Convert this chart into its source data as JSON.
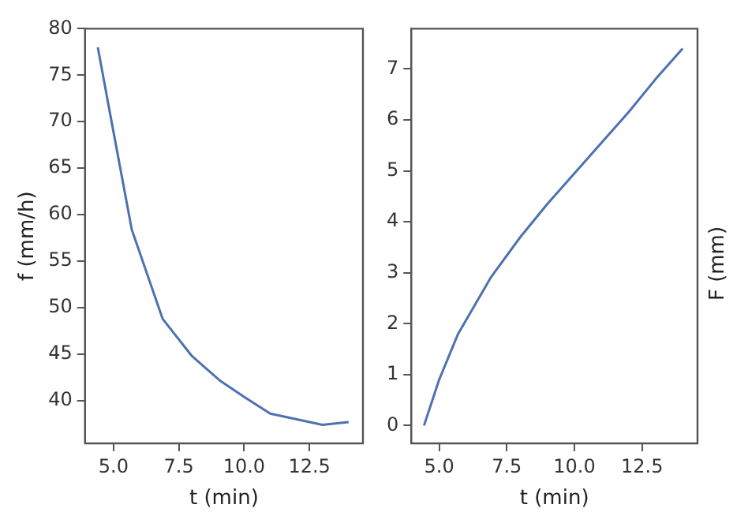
{
  "chart_data": [
    {
      "type": "line",
      "xlabel": "t (min)",
      "ylabel": "f (mm/h)",
      "x": [
        4.4,
        4.96,
        5.7,
        6.88,
        8.0,
        9.1,
        10.0,
        11.0,
        13.0,
        14.0
      ],
      "series": [
        {
          "color": "#4c72b0",
          "values": [
            78.0,
            69.5,
            58.4,
            48.8,
            44.8,
            42.1,
            40.4,
            38.6,
            37.4,
            37.7
          ]
        }
      ],
      "xlim": [
        3.91,
        14.55
      ],
      "xticks": [
        {
          "value": 5,
          "label": "5.0"
        },
        {
          "value": 7.5,
          "label": "7.5"
        },
        {
          "value": 10,
          "label": "10.0"
        },
        {
          "value": 12.5,
          "label": "12.5"
        }
      ],
      "ylim": [
        35.4,
        80
      ],
      "yticks": [
        40,
        45,
        50,
        55,
        60,
        65,
        70,
        75,
        80
      ],
      "grid": false,
      "legend": false,
      "marker": "none",
      "line_style": "solid"
    },
    {
      "type": "line",
      "xlabel": "t (min)",
      "ylabel": "F (mm)",
      "x": [
        4.44,
        5.0,
        5.7,
        6.9,
        8.0,
        9.0,
        10.0,
        11.0,
        12.0,
        13.0,
        14.0
      ],
      "series": [
        {
          "color": "#4c72b0",
          "values": [
            0,
            0.9,
            1.8,
            2.9,
            3.7,
            4.35,
            4.95,
            5.55,
            6.15,
            6.8,
            7.4
          ]
        }
      ],
      "xlim": [
        3.97,
        14.55
      ],
      "xticks": [
        {
          "value": 5,
          "label": "5.0"
        },
        {
          "value": 7.5,
          "label": "7.5"
        },
        {
          "value": 10,
          "label": "10.0"
        },
        {
          "value": 12.5,
          "label": "12.5"
        }
      ],
      "ylim": [
        -0.35,
        7.79
      ],
      "yticks": [
        0,
        1,
        2,
        3,
        4,
        5,
        6,
        7
      ],
      "grid": false,
      "legend": false,
      "marker": "none",
      "line_style": "solid"
    }
  ]
}
